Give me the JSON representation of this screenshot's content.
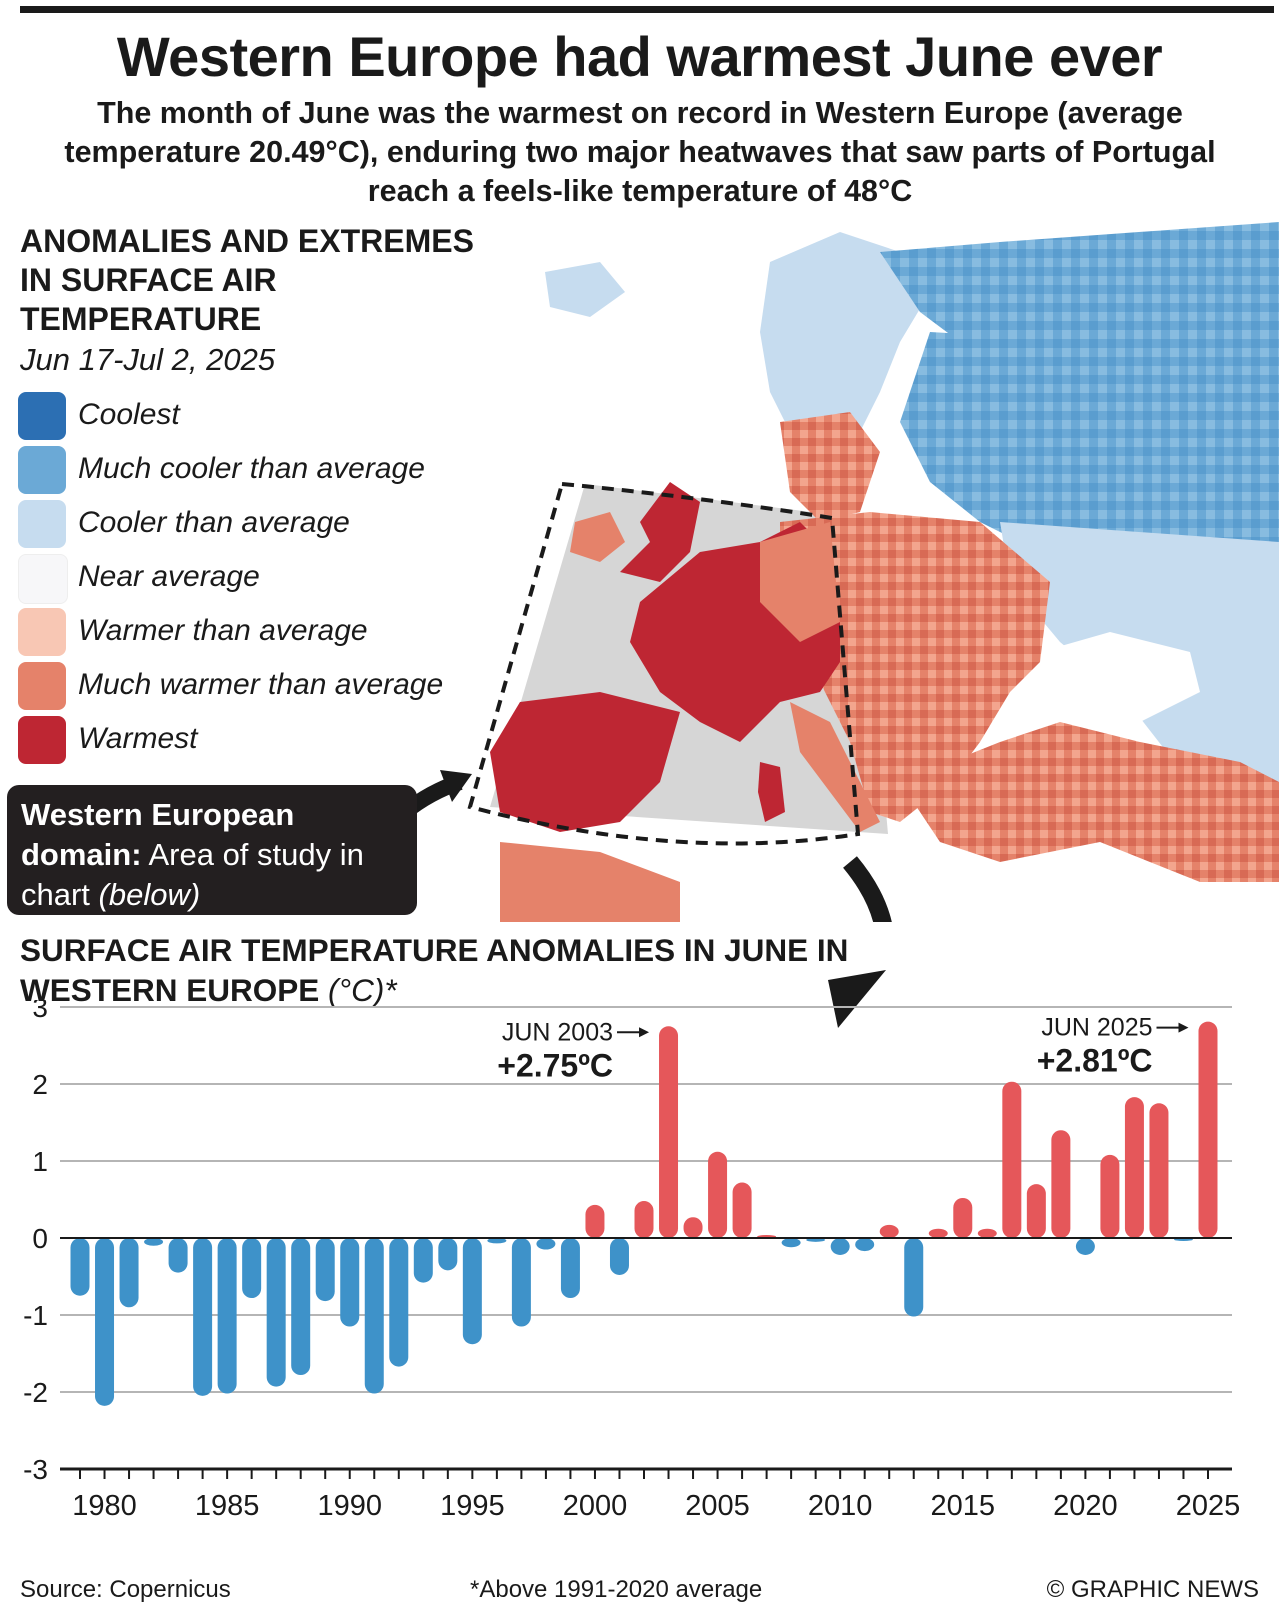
{
  "title": "Western Europe had warmest June ever",
  "subtitle": "The month of June was the warmest on record in Western Europe (average temperature 20.49°C), enduring two major heatwaves that saw parts of Portugal reach a feels-like temperature of 48°C",
  "map": {
    "title": "ANOMALIES AND EXTREMES IN SURFACE AIR TEMPERATURE",
    "date": "Jun 17-Jul 2, 2025",
    "legend": [
      {
        "label": "Coolest",
        "color": "#2c6fb3"
      },
      {
        "label": "Much cooler than average",
        "color": "#6ba9d6"
      },
      {
        "label": "Cooler than average",
        "color": "#c6dcef"
      },
      {
        "label": "Near average",
        "color": "#f7f7f9"
      },
      {
        "label": "Warmer than average",
        "color": "#f8c7b4"
      },
      {
        "label": "Much warmer than average",
        "color": "#e5826a"
      },
      {
        "label": "Warmest",
        "color": "#be2633"
      }
    ],
    "callout": {
      "bold": "Western European domain:",
      "text": "Area of study in chart",
      "italic": "(below)"
    }
  },
  "chart_title": {
    "main": "SURFACE AIR TEMPERATURE ANOMALIES IN JUNE IN WESTERN EUROPE",
    "unit": "(°C)*"
  },
  "chart_data": {
    "type": "bar",
    "ylim": [
      -3,
      3
    ],
    "yticks": [
      "3",
      "2",
      "1",
      "0",
      "-1",
      "-2",
      "-3"
    ],
    "xticks": [
      "1980",
      "1985",
      "1990",
      "1995",
      "2000",
      "2005",
      "2010",
      "2015",
      "2020",
      "2025"
    ],
    "positive_color": "#e5575a",
    "negative_color": "#3e92c9",
    "years": [
      1979,
      1980,
      1981,
      1982,
      1983,
      1984,
      1985,
      1986,
      1987,
      1988,
      1989,
      1990,
      1991,
      1992,
      1993,
      1994,
      1995,
      1996,
      1997,
      1998,
      1999,
      2000,
      2001,
      2002,
      2003,
      2004,
      2005,
      2006,
      2007,
      2008,
      2009,
      2010,
      2011,
      2012,
      2013,
      2014,
      2015,
      2016,
      2017,
      2018,
      2019,
      2020,
      2021,
      2022,
      2023,
      2024,
      2025
    ],
    "values": [
      -0.75,
      -2.18,
      -0.9,
      -0.1,
      -0.45,
      -2.05,
      -2.02,
      -0.78,
      -1.93,
      -1.78,
      -0.82,
      -1.15,
      -2.02,
      -1.67,
      -0.58,
      -0.42,
      -1.38,
      -0.07,
      -1.15,
      -0.15,
      -0.78,
      0.43,
      -0.48,
      0.48,
      2.75,
      0.27,
      1.12,
      0.72,
      0.01,
      -0.12,
      -0.05,
      -0.22,
      -0.17,
      0.17,
      -1.02,
      0.12,
      0.52,
      0.12,
      2.03,
      0.7,
      1.4,
      -0.22,
      1.08,
      1.83,
      1.75,
      -0.02,
      2.81
    ],
    "annotations": [
      {
        "label": "JUN 2003",
        "value": "+2.75ºC"
      },
      {
        "label": "JUN 2025",
        "value": "+2.81ºC"
      }
    ]
  },
  "footer": {
    "source": "Source: Copernicus",
    "note": "*Above 1991-2020 average",
    "credit": "© GRAPHIC NEWS"
  }
}
